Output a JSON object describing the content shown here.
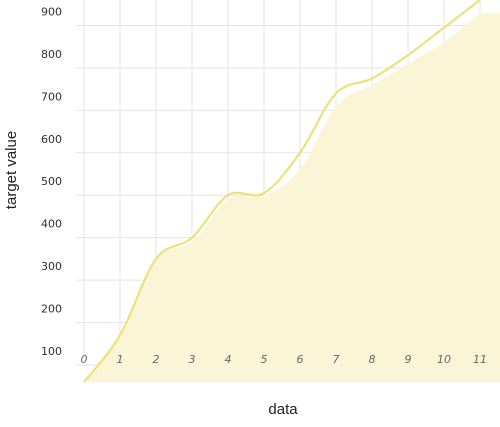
{
  "chart_data": {
    "type": "area",
    "xlabel": "data",
    "ylabel": "target value",
    "xlim": [
      0,
      11
    ],
    "ylim": [
      60,
      960
    ],
    "x_ticks": [
      "0",
      "1",
      "2",
      "3",
      "4",
      "5",
      "6",
      "7",
      "8",
      "9",
      "10",
      "11"
    ],
    "y_ticks": [
      "100",
      "200",
      "300",
      "400",
      "500",
      "600",
      "700",
      "800",
      "900"
    ],
    "grid": true,
    "series": [
      {
        "kind": "line",
        "color": "#ede17a",
        "x": [
          0,
          1,
          2,
          3,
          4,
          5,
          6,
          7,
          8,
          9,
          10,
          11
        ],
        "y": [
          60,
          170,
          350,
          400,
          500,
          505,
          600,
          740,
          775,
          830,
          895,
          960
        ]
      },
      {
        "kind": "area",
        "color": "#fbf5d8",
        "x": [
          0,
          1,
          2,
          3,
          4,
          5,
          6,
          7,
          8,
          9,
          10,
          11
        ],
        "y": [
          60,
          170,
          350,
          390,
          490,
          500,
          560,
          710,
          760,
          810,
          860,
          930
        ]
      }
    ]
  }
}
